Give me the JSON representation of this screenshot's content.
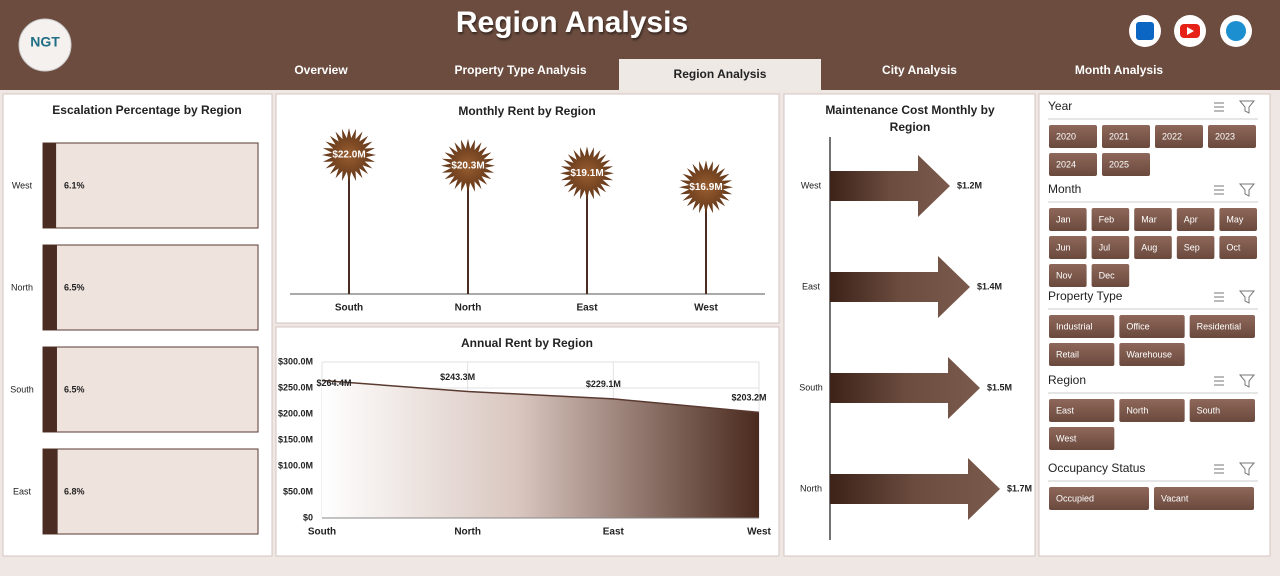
{
  "header": {
    "title": "Region Analysis",
    "logo": "NGT",
    "tabs": [
      "Overview",
      "Property Type Analysis",
      "Region Analysis",
      "City Analysis",
      "Month Analysis"
    ],
    "active_tab": 2
  },
  "chart_data": [
    {
      "type": "box-bar",
      "title": "Escalation Percentage by Region",
      "categories": [
        "West",
        "North",
        "South",
        "East"
      ],
      "values": [
        6.1,
        6.5,
        6.5,
        6.8
      ],
      "value_labels": [
        "6.1%",
        "6.5%",
        "6.5%",
        "6.8%"
      ],
      "xlim": [
        0,
        100
      ],
      "color": "#4a2c22"
    },
    {
      "type": "lollipop",
      "title": "Monthly Rent by Region",
      "categories": [
        "South",
        "North",
        "East",
        "West"
      ],
      "values": [
        22.0,
        20.3,
        19.1,
        16.9
      ],
      "value_labels": [
        "$22.0M",
        "$20.3M",
        "$19.1M",
        "$16.9M"
      ],
      "ylim": [
        0,
        25
      ],
      "color": "#7a4626"
    },
    {
      "type": "area",
      "title": "Annual Rent by Region",
      "categories": [
        "South",
        "North",
        "East",
        "West"
      ],
      "values": [
        264.4,
        243.3,
        229.1,
        203.2
      ],
      "value_labels": [
        "$264.4M",
        "$243.3M",
        "$229.1M",
        "$203.2M"
      ],
      "ylim": [
        0,
        300
      ],
      "yticks": [
        {
          "value": 0,
          "label": "$0"
        },
        {
          "value": 50,
          "label": "$50.0M"
        },
        {
          "value": 100,
          "label": "$100.0M"
        },
        {
          "value": 150,
          "label": "$150.0M"
        },
        {
          "value": 200,
          "label": "$200.0M"
        },
        {
          "value": 250,
          "label": "$250.0M"
        },
        {
          "value": 300,
          "label": "$300.0M"
        }
      ],
      "grid": true,
      "color": "#4a2a1e"
    },
    {
      "type": "arrow",
      "title": "Maintenance Cost Monthly by Region",
      "categories": [
        "West",
        "East",
        "South",
        "North"
      ],
      "values": [
        1.2,
        1.4,
        1.5,
        1.7
      ],
      "value_labels": [
        "$1.2M",
        "$1.4M",
        "$1.5M",
        "$1.7M"
      ],
      "xlim": [
        0,
        2
      ],
      "color": "#6b4c3f"
    }
  ],
  "slicers": [
    {
      "title": "Year",
      "items": [
        "2020",
        "2021",
        "2022",
        "2023",
        "2024",
        "2025"
      ]
    },
    {
      "title": "Month",
      "items": [
        "Jan",
        "Feb",
        "Mar",
        "Apr",
        "May",
        "Jun",
        "Jul",
        "Aug",
        "Sep",
        "Oct",
        "Nov",
        "Dec"
      ]
    },
    {
      "title": "Property Type",
      "items": [
        "Industrial",
        "Office",
        "Residential",
        "Retail",
        "Warehouse"
      ]
    },
    {
      "title": "Region",
      "items": [
        "East",
        "North",
        "South",
        "West"
      ]
    },
    {
      "title": "Occupancy Status",
      "items": [
        "Occupied",
        "Vacant"
      ]
    }
  ]
}
